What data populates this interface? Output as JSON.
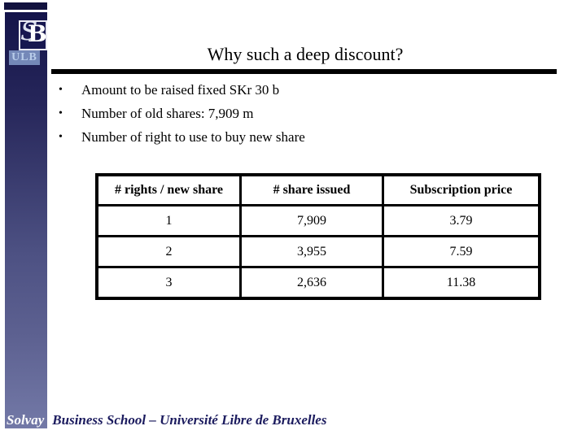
{
  "logo": {
    "monogram_back": "S",
    "monogram_front": "B",
    "ulb_label": "ULB"
  },
  "title": {
    "text": "Why such a deep discount?"
  },
  "bullets": {
    "char": "•",
    "items": [
      "Amount to be raised fixed SKr 30 b",
      "Number of old shares: 7,909 m",
      "Number of right to use to buy new share"
    ]
  },
  "table": {
    "headers": [
      "# rights / new share",
      "# share issued",
      "Subscription price"
    ],
    "rows": [
      [
        "1",
        "7,909",
        "3.79"
      ],
      [
        "2",
        "3,955",
        "7.59"
      ],
      [
        "3",
        "2,636",
        "11.38"
      ]
    ]
  },
  "footer": {
    "brand": "Solvay",
    "text": "Business School – Université Libre de Bruxelles"
  },
  "colors": {
    "sidebar_top": "#14144a",
    "sidebar_bottom": "#7379a7",
    "ulb_text": "#b9cdea",
    "footer_text": "#1b1b5e",
    "rule": "#000000"
  }
}
